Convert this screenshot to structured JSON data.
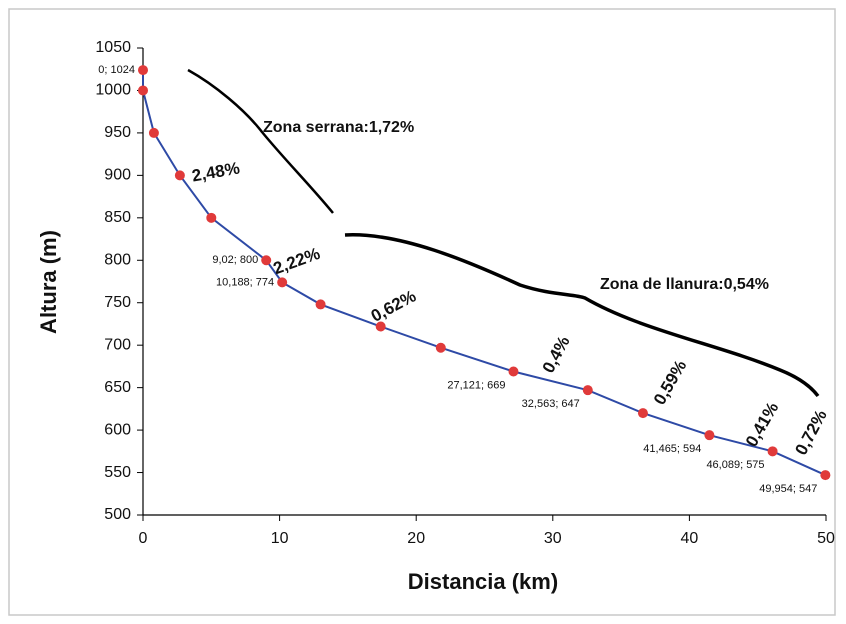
{
  "chart_data": {
    "type": "line",
    "x_label": "Distancia (km)",
    "y_label": "Altura (m)",
    "xlim": [
      0,
      50
    ],
    "xticks": [
      0,
      10,
      20,
      30,
      40,
      50
    ],
    "ylim": [
      500,
      1050
    ],
    "yticks": [
      500,
      550,
      600,
      650,
      700,
      750,
      800,
      850,
      900,
      950,
      1000,
      1050
    ],
    "series": [
      {
        "color": "#2e4aa6",
        "marker_color": "#e03a3a",
        "x": [
          0,
          0,
          0.8,
          2.7,
          5,
          9.02,
          10.188,
          13,
          17.4,
          21.8,
          27.121,
          32.563,
          36.6,
          41.465,
          46.089,
          49.954
        ],
        "values": [
          1024,
          1000,
          950,
          900,
          850,
          800,
          774,
          748,
          722,
          697,
          669,
          647,
          620,
          594,
          575,
          547
        ],
        "value_labels": [
          "0; 1024",
          null,
          null,
          null,
          null,
          "9,02; 800",
          "10,188; 774",
          null,
          null,
          null,
          "27,121; 669",
          "32,563; 647",
          null,
          "41,465; 594",
          "46,089; 575",
          "49,954; 547"
        ]
      }
    ],
    "annotations": [
      "2,48%",
      "2,22%",
      "0,62%",
      "0,4%",
      "0,59%",
      "0,41%",
      "0,72%",
      "Zona serrana:1,72%",
      "Zona de llanura:0,54%"
    ]
  }
}
